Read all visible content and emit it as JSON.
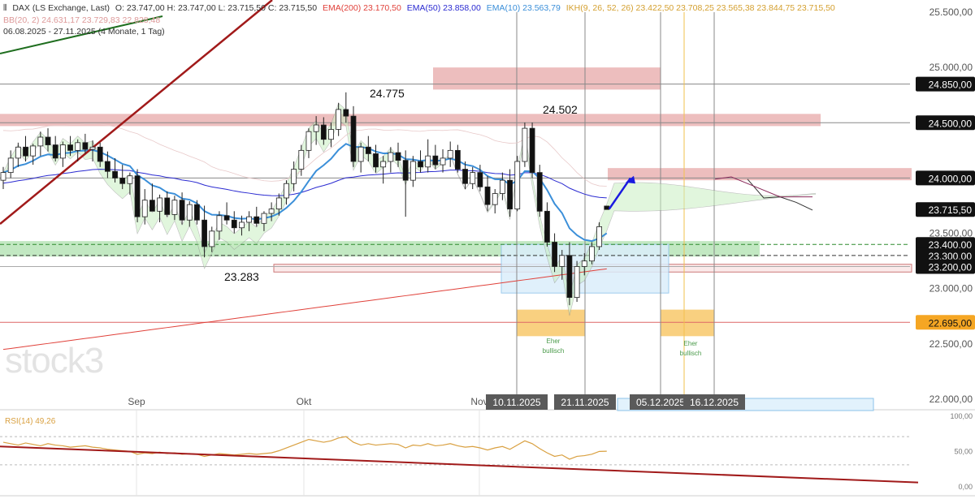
{
  "header": {
    "symbol": "DAX (LS Exchange, Last)",
    "ohlc": "O: 23.747,00  H: 23.747,00  L: 23.715,50  C: 23.715,50",
    "ema200": "EMA(200)  23.170,50",
    "ema50": "EMA(50)  23.858,00",
    "ema10": "EMA(10)  23.563,79",
    "ikh": "IKH(9, 26, 52, 26)  23.422,50  23.708,25  23.565,38  23.844,75  23.715,50",
    "bb": "BB(20, 2)  24.631,17  23.729,83  22.828,48",
    "range": "06.08.2025 - 27.11.2025  (4 Monate, 1 Tag)"
  },
  "watermark": "stock3",
  "colors": {
    "ema200": "#e0413a",
    "ema50": "#2a2ad1",
    "ema10": "#3b8fd9",
    "ikh": "#e8b040",
    "bb": "#d98c8c",
    "trend": "#a11a1a",
    "rsi": "#d9a040",
    "cloud_bull": "#c9efc3",
    "cloud_bear": "#f5d0d0",
    "resistance_zone": "#eab3b3",
    "support_zone": "#8fd68f",
    "price_tag": "#111111",
    "highlight_tag": "#f5a623"
  },
  "chart_data": {
    "type": "candlestick",
    "y_axis": {
      "ylim": [
        21900,
        25650
      ],
      "ticks": [
        "25.500,00",
        "25.000,00",
        "24.500,00",
        "24.000,00",
        "23.500,00",
        "23.000,00",
        "22.500,00",
        "22.000,00"
      ]
    },
    "x_labels": [
      "Sep",
      "Okt",
      "Nov"
    ],
    "price_tags": [
      {
        "label": "24.850,00",
        "value": 24850,
        "style": "dark"
      },
      {
        "label": "24.500,00",
        "value": 24500,
        "style": "dark"
      },
      {
        "label": "24.000,00",
        "value": 24000,
        "style": "dark"
      },
      {
        "label": "23.715,50",
        "value": 23715.5,
        "style": "dark"
      },
      {
        "label": "23.400,00",
        "value": 23400,
        "style": "dark"
      },
      {
        "label": "23.300,00",
        "value": 23300,
        "style": "dark"
      },
      {
        "label": "23.200,00",
        "value": 23200,
        "style": "dark"
      },
      {
        "label": "22.695,00",
        "value": 22695,
        "style": "orange"
      }
    ],
    "annotations": [
      {
        "text": "24.775",
        "value": 24775
      },
      {
        "text": "24.502",
        "value": 24502
      },
      {
        "text": "23.283",
        "value": 23283
      }
    ],
    "date_tags": [
      "10.11.2025",
      "21.11.2025",
      "05.12.2025",
      "16.12.2025"
    ],
    "signal_labels": [
      "Eher bullisch",
      "Eher bullisch"
    ],
    "candles": [
      {
        "o": 23980,
        "h": 24100,
        "l": 23900,
        "c": 24050
      },
      {
        "o": 24050,
        "h": 24250,
        "l": 24000,
        "c": 24180
      },
      {
        "o": 24180,
        "h": 24320,
        "l": 24100,
        "c": 24280
      },
      {
        "o": 24280,
        "h": 24380,
        "l": 24150,
        "c": 24200
      },
      {
        "o": 24200,
        "h": 24310,
        "l": 24120,
        "c": 24290
      },
      {
        "o": 24290,
        "h": 24420,
        "l": 24200,
        "c": 24370
      },
      {
        "o": 24370,
        "h": 24450,
        "l": 24240,
        "c": 24300
      },
      {
        "o": 24300,
        "h": 24380,
        "l": 24150,
        "c": 24180
      },
      {
        "o": 24180,
        "h": 24330,
        "l": 24100,
        "c": 24300
      },
      {
        "o": 24300,
        "h": 24380,
        "l": 24200,
        "c": 24250
      },
      {
        "o": 24250,
        "h": 24350,
        "l": 24150,
        "c": 24320
      },
      {
        "o": 24320,
        "h": 24400,
        "l": 24220,
        "c": 24260
      },
      {
        "o": 24260,
        "h": 24340,
        "l": 24150,
        "c": 24280
      },
      {
        "o": 24280,
        "h": 24320,
        "l": 24100,
        "c": 24150
      },
      {
        "o": 24150,
        "h": 24240,
        "l": 24000,
        "c": 24060
      },
      {
        "o": 24060,
        "h": 24180,
        "l": 23960,
        "c": 24000
      },
      {
        "o": 24000,
        "h": 24120,
        "l": 23900,
        "c": 23950
      },
      {
        "o": 23950,
        "h": 24050,
        "l": 23850,
        "c": 24020
      },
      {
        "o": 24020,
        "h": 24080,
        "l": 23600,
        "c": 23650
      },
      {
        "o": 23650,
        "h": 23900,
        "l": 23580,
        "c": 23800
      },
      {
        "o": 23800,
        "h": 23950,
        "l": 23700,
        "c": 23700
      },
      {
        "o": 23700,
        "h": 23850,
        "l": 23600,
        "c": 23820
      },
      {
        "o": 23820,
        "h": 23880,
        "l": 23650,
        "c": 23670
      },
      {
        "o": 23670,
        "h": 23840,
        "l": 23620,
        "c": 23800
      },
      {
        "o": 23800,
        "h": 23870,
        "l": 23580,
        "c": 23620
      },
      {
        "o": 23620,
        "h": 23790,
        "l": 23560,
        "c": 23760
      },
      {
        "o": 23760,
        "h": 23800,
        "l": 23580,
        "c": 23620
      },
      {
        "o": 23620,
        "h": 23750,
        "l": 23283,
        "c": 23380
      },
      {
        "o": 23380,
        "h": 23560,
        "l": 23330,
        "c": 23520
      },
      {
        "o": 23520,
        "h": 23700,
        "l": 23440,
        "c": 23660
      },
      {
        "o": 23660,
        "h": 23780,
        "l": 23580,
        "c": 23620
      },
      {
        "o": 23620,
        "h": 23700,
        "l": 23500,
        "c": 23550
      },
      {
        "o": 23550,
        "h": 23660,
        "l": 23480,
        "c": 23600
      },
      {
        "o": 23600,
        "h": 23700,
        "l": 23520,
        "c": 23650
      },
      {
        "o": 23650,
        "h": 23740,
        "l": 23560,
        "c": 23590
      },
      {
        "o": 23590,
        "h": 23700,
        "l": 23520,
        "c": 23680
      },
      {
        "o": 23680,
        "h": 23780,
        "l": 23610,
        "c": 23720
      },
      {
        "o": 23720,
        "h": 23860,
        "l": 23660,
        "c": 23820
      },
      {
        "o": 23820,
        "h": 23980,
        "l": 23760,
        "c": 23950
      },
      {
        "o": 23950,
        "h": 24150,
        "l": 23880,
        "c": 24080
      },
      {
        "o": 24080,
        "h": 24300,
        "l": 24020,
        "c": 24250
      },
      {
        "o": 24250,
        "h": 24450,
        "l": 24180,
        "c": 24420
      },
      {
        "o": 24420,
        "h": 24560,
        "l": 24300,
        "c": 24480
      },
      {
        "o": 24480,
        "h": 24550,
        "l": 24300,
        "c": 24350
      },
      {
        "o": 24350,
        "h": 24500,
        "l": 24280,
        "c": 24440
      },
      {
        "o": 24440,
        "h": 24680,
        "l": 24380,
        "c": 24620
      },
      {
        "o": 24620,
        "h": 24775,
        "l": 24500,
        "c": 24560
      },
      {
        "o": 24560,
        "h": 24650,
        "l": 24100,
        "c": 24150
      },
      {
        "o": 24150,
        "h": 24320,
        "l": 24050,
        "c": 24280
      },
      {
        "o": 24280,
        "h": 24380,
        "l": 24150,
        "c": 24220
      },
      {
        "o": 24220,
        "h": 24300,
        "l": 24050,
        "c": 24100
      },
      {
        "o": 24100,
        "h": 24200,
        "l": 23950,
        "c": 24150
      },
      {
        "o": 24150,
        "h": 24280,
        "l": 24050,
        "c": 24230
      },
      {
        "o": 24230,
        "h": 24320,
        "l": 24100,
        "c": 24160
      },
      {
        "o": 24160,
        "h": 24250,
        "l": 23650,
        "c": 23980
      },
      {
        "o": 23980,
        "h": 24200,
        "l": 23920,
        "c": 24150
      },
      {
        "o": 24150,
        "h": 24250,
        "l": 24050,
        "c": 24100
      },
      {
        "o": 24100,
        "h": 24350,
        "l": 24050,
        "c": 24200
      },
      {
        "o": 24200,
        "h": 24300,
        "l": 24080,
        "c": 24120
      },
      {
        "o": 24120,
        "h": 24260,
        "l": 24050,
        "c": 24180
      },
      {
        "o": 24180,
        "h": 24330,
        "l": 24100,
        "c": 24250
      },
      {
        "o": 24250,
        "h": 24300,
        "l": 24050,
        "c": 24080
      },
      {
        "o": 24080,
        "h": 24150,
        "l": 23900,
        "c": 23950
      },
      {
        "o": 23950,
        "h": 24100,
        "l": 23900,
        "c": 24050
      },
      {
        "o": 24050,
        "h": 24120,
        "l": 23880,
        "c": 23920
      },
      {
        "o": 23920,
        "h": 24020,
        "l": 23700,
        "c": 23760
      },
      {
        "o": 23760,
        "h": 23900,
        "l": 23680,
        "c": 23860
      },
      {
        "o": 23860,
        "h": 24050,
        "l": 23800,
        "c": 23980
      },
      {
        "o": 23980,
        "h": 24080,
        "l": 23650,
        "c": 23720
      },
      {
        "o": 23720,
        "h": 24200,
        "l": 23700,
        "c": 24150
      },
      {
        "o": 24150,
        "h": 24502,
        "l": 24100,
        "c": 24450
      },
      {
        "o": 24450,
        "h": 24502,
        "l": 24000,
        "c": 24050
      },
      {
        "o": 24050,
        "h": 24120,
        "l": 23650,
        "c": 23700
      },
      {
        "o": 23700,
        "h": 23780,
        "l": 23380,
        "c": 23420
      },
      {
        "o": 23420,
        "h": 23500,
        "l": 23150,
        "c": 23200
      },
      {
        "o": 23200,
        "h": 23350,
        "l": 23080,
        "c": 23300
      },
      {
        "o": 23300,
        "h": 23420,
        "l": 22850,
        "c": 22920
      },
      {
        "o": 22920,
        "h": 23250,
        "l": 22880,
        "c": 23200
      },
      {
        "o": 23200,
        "h": 23320,
        "l": 23120,
        "c": 23250
      },
      {
        "o": 23250,
        "h": 23420,
        "l": 23220,
        "c": 23380
      },
      {
        "o": 23380,
        "h": 23600,
        "l": 23350,
        "c": 23560
      },
      {
        "o": 23747,
        "h": 23747,
        "l": 23715.5,
        "c": 23715.5
      }
    ],
    "rsi": {
      "name": "RSI(14)",
      "last": "49,26",
      "ylim": [
        0,
        100
      ],
      "ticks": [
        "100,00",
        "50,00",
        "0,00"
      ],
      "values": [
        62,
        60,
        58,
        61,
        59,
        57,
        60,
        58,
        57,
        55,
        56,
        57,
        55,
        54,
        52,
        51,
        50,
        49,
        45,
        47,
        46,
        48,
        46,
        47,
        45,
        46,
        45,
        42,
        44,
        46,
        45,
        44,
        45,
        46,
        45,
        46,
        47,
        50,
        54,
        58,
        62,
        66,
        64,
        62,
        64,
        68,
        70,
        62,
        58,
        60,
        58,
        59,
        60,
        59,
        54,
        58,
        57,
        60,
        57,
        58,
        60,
        57,
        55,
        56,
        54,
        51,
        54,
        56,
        52,
        58,
        64,
        60,
        53,
        47,
        42,
        44,
        38,
        42,
        43,
        45,
        49,
        49.26
      ]
    }
  }
}
